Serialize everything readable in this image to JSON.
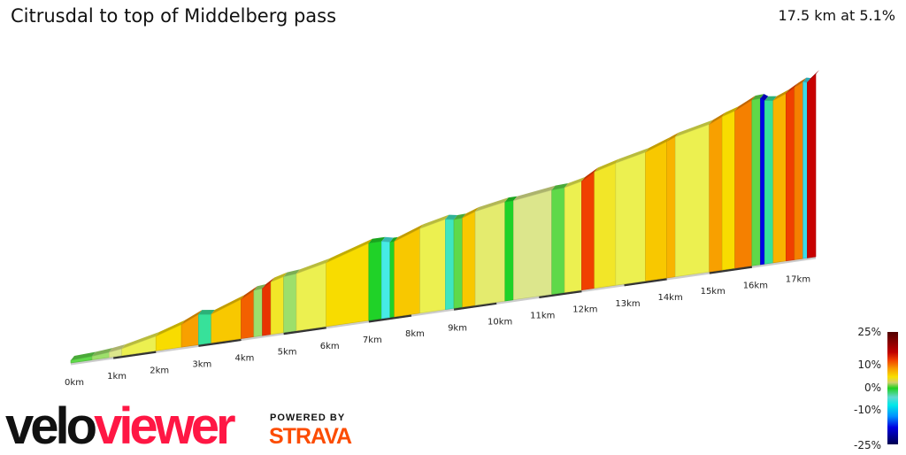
{
  "header": {
    "title": "Citrusdal to top of Middelberg pass",
    "summary": "17.5 km at 5.1%"
  },
  "legend": {
    "labels": [
      "25%",
      "10%",
      "0%",
      "-10%",
      "-25%"
    ]
  },
  "branding": {
    "logo_part1": "velo",
    "logo_part2": "viewer",
    "powered_by": "POWERED BY",
    "strava": "STRAVA"
  },
  "chart_data": {
    "type": "area",
    "title": "Citrusdal to top of Middelberg pass",
    "xlabel": "",
    "ylabel": "",
    "x_unit": "km",
    "x_ticks": [
      "0km",
      "1km",
      "2km",
      "3km",
      "4km",
      "5km",
      "6km",
      "7km",
      "8km",
      "9km",
      "10km",
      "11km",
      "12km",
      "13km",
      "14km",
      "15km",
      "16km",
      "17km"
    ],
    "xlim": [
      0,
      17.5
    ],
    "total_distance_km": 17.5,
    "average_grade_pct": 5.1,
    "color_scale": {
      "min_pct": -25,
      "max_pct": 25
    },
    "segments": [
      {
        "start_km": 0,
        "end_km": 0.5,
        "grade_pct": 1
      },
      {
        "start_km": 0.5,
        "end_km": 0.9,
        "grade_pct": 2
      },
      {
        "start_km": 0.9,
        "end_km": 1.2,
        "grade_pct": 3
      },
      {
        "start_km": 1.2,
        "end_km": 2.0,
        "grade_pct": 5
      },
      {
        "start_km": 2.0,
        "end_km": 2.6,
        "grade_pct": 7
      },
      {
        "start_km": 2.6,
        "end_km": 3.0,
        "grade_pct": 10
      },
      {
        "start_km": 3.0,
        "end_km": 3.3,
        "grade_pct": -3
      },
      {
        "start_km": 3.3,
        "end_km": 4.0,
        "grade_pct": 8
      },
      {
        "start_km": 4.0,
        "end_km": 4.3,
        "grade_pct": 12
      },
      {
        "start_km": 4.3,
        "end_km": 4.5,
        "grade_pct": 2
      },
      {
        "start_km": 4.5,
        "end_km": 4.7,
        "grade_pct": 14
      },
      {
        "start_km": 4.7,
        "end_km": 5.0,
        "grade_pct": 6
      },
      {
        "start_km": 5.0,
        "end_km": 5.3,
        "grade_pct": 2
      },
      {
        "start_km": 5.3,
        "end_km": 6.0,
        "grade_pct": 5
      },
      {
        "start_km": 6.0,
        "end_km": 7.0,
        "grade_pct": 7
      },
      {
        "start_km": 7.0,
        "end_km": 7.3,
        "grade_pct": 0
      },
      {
        "start_km": 7.3,
        "end_km": 7.5,
        "grade_pct": -5
      },
      {
        "start_km": 7.5,
        "end_km": 7.6,
        "grade_pct": 0
      },
      {
        "start_km": 7.6,
        "end_km": 8.2,
        "grade_pct": 8
      },
      {
        "start_km": 8.2,
        "end_km": 8.8,
        "grade_pct": 5
      },
      {
        "start_km": 8.8,
        "end_km": 9.0,
        "grade_pct": -4
      },
      {
        "start_km": 9.0,
        "end_km": 9.2,
        "grade_pct": 1
      },
      {
        "start_km": 9.2,
        "end_km": 9.5,
        "grade_pct": 8
      },
      {
        "start_km": 9.5,
        "end_km": 10.2,
        "grade_pct": 4
      },
      {
        "start_km": 10.2,
        "end_km": 10.4,
        "grade_pct": 0
      },
      {
        "start_km": 10.4,
        "end_km": 11.3,
        "grade_pct": 3
      },
      {
        "start_km": 11.3,
        "end_km": 11.6,
        "grade_pct": 1
      },
      {
        "start_km": 11.6,
        "end_km": 12.0,
        "grade_pct": 5
      },
      {
        "start_km": 12.0,
        "end_km": 12.3,
        "grade_pct": 13
      },
      {
        "start_km": 12.3,
        "end_km": 12.8,
        "grade_pct": 6
      },
      {
        "start_km": 12.8,
        "end_km": 13.5,
        "grade_pct": 5
      },
      {
        "start_km": 13.5,
        "end_km": 14.0,
        "grade_pct": 8
      },
      {
        "start_km": 14.0,
        "end_km": 14.2,
        "grade_pct": 9
      },
      {
        "start_km": 14.2,
        "end_km": 15.0,
        "grade_pct": 5
      },
      {
        "start_km": 15.0,
        "end_km": 15.3,
        "grade_pct": 10
      },
      {
        "start_km": 15.3,
        "end_km": 15.6,
        "grade_pct": 7
      },
      {
        "start_km": 15.6,
        "end_km": 16.0,
        "grade_pct": 11
      },
      {
        "start_km": 16.0,
        "end_km": 16.2,
        "grade_pct": 1
      },
      {
        "start_km": 16.2,
        "end_km": 16.3,
        "grade_pct": -15
      },
      {
        "start_km": 16.3,
        "end_km": 16.5,
        "grade_pct": -3
      },
      {
        "start_km": 16.5,
        "end_km": 16.8,
        "grade_pct": 9
      },
      {
        "start_km": 16.8,
        "end_km": 17.0,
        "grade_pct": 13
      },
      {
        "start_km": 17.0,
        "end_km": 17.2,
        "grade_pct": 11
      },
      {
        "start_km": 17.2,
        "end_km": 17.3,
        "grade_pct": -6
      },
      {
        "start_km": 17.3,
        "end_km": 17.5,
        "grade_pct": 18
      }
    ]
  }
}
